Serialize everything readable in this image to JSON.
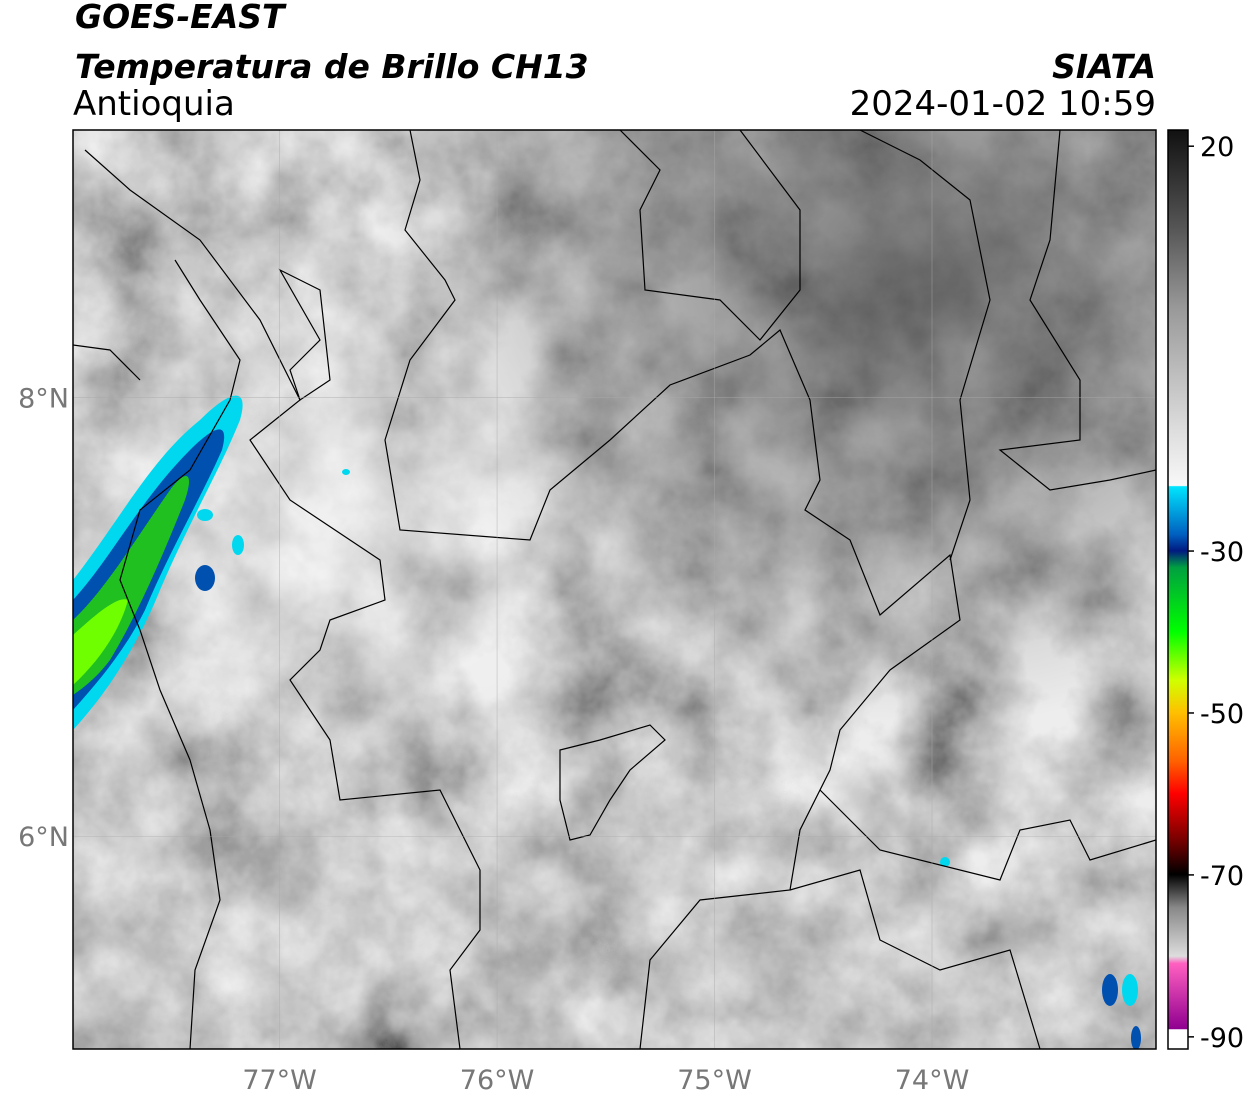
{
  "header": {
    "title": "GOES-EAST",
    "subtitle": "Temperatura de Brillo CH13",
    "region": "Antioquia",
    "source": "SIATA",
    "datetime": "2024-01-02 10:59"
  },
  "map": {
    "lonlim": [
      -77.95,
      -72.97
    ],
    "latlim": [
      5.03,
      9.22
    ],
    "lon_ticks": [
      {
        "value": -77,
        "label": "77°W"
      },
      {
        "value": -76,
        "label": "76°W"
      },
      {
        "value": -75,
        "label": "75°W"
      },
      {
        "value": -74,
        "label": "74°W"
      }
    ],
    "lat_ticks": [
      {
        "value": 8,
        "label": "8°N"
      },
      {
        "value": 6,
        "label": "6°N"
      }
    ]
  },
  "colorbar": {
    "lim": [
      -91.5,
      22
    ],
    "ticks": [
      20,
      -30,
      -50,
      -70,
      -90
    ]
  }
}
